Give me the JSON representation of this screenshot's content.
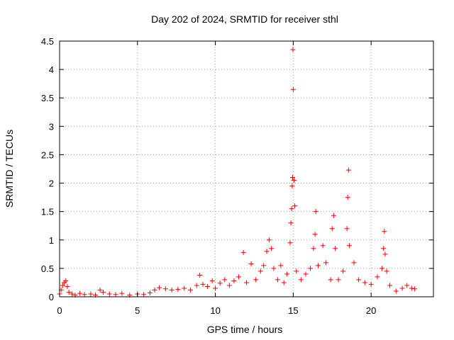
{
  "chart_data": {
    "type": "scatter",
    "title": "Day 202 of 2024, SRMTID for receiver sthl",
    "xlabel": "GPS time / hours",
    "ylabel": "SRMTID / TECUs",
    "xlim": [
      0,
      24
    ],
    "ylim": [
      0,
      4.5
    ],
    "xticks": [
      0,
      5,
      10,
      15,
      20
    ],
    "xtick_labels": [
      "0",
      "5",
      "10",
      "15",
      "20"
    ],
    "yticks": [
      0,
      0.5,
      1,
      1.5,
      2,
      2.5,
      3,
      3.5,
      4,
      4.5
    ],
    "ytick_labels": [
      "0",
      "0.5",
      "1",
      "1.5",
      "2",
      "2.5",
      "3",
      "3.5",
      "4",
      "4.5"
    ],
    "grid": true,
    "marker": "plus",
    "color": "#ff0000",
    "series": [
      {
        "name": "SRMTID",
        "points": [
          [
            0.0,
            0.05
          ],
          [
            0.1,
            0.12
          ],
          [
            0.2,
            0.2
          ],
          [
            0.3,
            0.25
          ],
          [
            0.4,
            0.28
          ],
          [
            0.5,
            0.18
          ],
          [
            0.6,
            0.08
          ],
          [
            0.8,
            0.05
          ],
          [
            1.0,
            0.03
          ],
          [
            1.3,
            0.06
          ],
          [
            1.6,
            0.04
          ],
          [
            2.0,
            0.05
          ],
          [
            2.3,
            0.03
          ],
          [
            2.6,
            0.12
          ],
          [
            2.8,
            0.08
          ],
          [
            3.2,
            0.05
          ],
          [
            3.6,
            0.04
          ],
          [
            4.0,
            0.06
          ],
          [
            4.5,
            0.03
          ],
          [
            5.0,
            0.05
          ],
          [
            5.4,
            0.04
          ],
          [
            5.8,
            0.07
          ],
          [
            6.1,
            0.12
          ],
          [
            6.4,
            0.16
          ],
          [
            6.8,
            0.14
          ],
          [
            7.2,
            0.12
          ],
          [
            7.6,
            0.13
          ],
          [
            8.0,
            0.15
          ],
          [
            8.4,
            0.12
          ],
          [
            8.8,
            0.2
          ],
          [
            9.0,
            0.38
          ],
          [
            9.2,
            0.22
          ],
          [
            9.5,
            0.18
          ],
          [
            9.8,
            0.28
          ],
          [
            10.0,
            0.15
          ],
          [
            10.3,
            0.24
          ],
          [
            10.6,
            0.3
          ],
          [
            10.9,
            0.2
          ],
          [
            11.2,
            0.28
          ],
          [
            11.5,
            0.35
          ],
          [
            11.8,
            0.78
          ],
          [
            12.0,
            0.25
          ],
          [
            12.3,
            0.58
          ],
          [
            12.6,
            0.3
          ],
          [
            12.9,
            0.45
          ],
          [
            13.1,
            0.55
          ],
          [
            13.3,
            0.8
          ],
          [
            13.45,
            1.0
          ],
          [
            13.6,
            0.85
          ],
          [
            13.75,
            0.5
          ],
          [
            14.0,
            0.3
          ],
          [
            14.2,
            0.55
          ],
          [
            14.4,
            0.25
          ],
          [
            14.6,
            0.4
          ],
          [
            14.8,
            0.95
          ],
          [
            14.85,
            1.3
          ],
          [
            14.9,
            1.55
          ],
          [
            14.93,
            1.95
          ],
          [
            14.96,
            2.1
          ],
          [
            14.98,
            4.35
          ],
          [
            15.0,
            3.65
          ],
          [
            15.05,
            2.05
          ],
          [
            15.1,
            1.6
          ],
          [
            15.2,
            0.45
          ],
          [
            15.5,
            0.3
          ],
          [
            15.8,
            0.4
          ],
          [
            16.1,
            0.5
          ],
          [
            16.3,
            0.85
          ],
          [
            16.4,
            1.1
          ],
          [
            16.45,
            1.5
          ],
          [
            16.6,
            0.55
          ],
          [
            16.9,
            0.9
          ],
          [
            17.1,
            0.6
          ],
          [
            17.4,
            0.3
          ],
          [
            17.5,
            1.2
          ],
          [
            17.6,
            1.43
          ],
          [
            17.7,
            0.85
          ],
          [
            17.9,
            0.3
          ],
          [
            18.2,
            0.45
          ],
          [
            18.45,
            1.2
          ],
          [
            18.5,
            1.75
          ],
          [
            18.55,
            2.23
          ],
          [
            18.6,
            0.9
          ],
          [
            18.9,
            0.6
          ],
          [
            19.2,
            0.3
          ],
          [
            19.6,
            0.25
          ],
          [
            20.0,
            0.22
          ],
          [
            20.4,
            0.35
          ],
          [
            20.7,
            0.5
          ],
          [
            20.8,
            0.85
          ],
          [
            20.85,
            1.15
          ],
          [
            20.9,
            0.75
          ],
          [
            21.0,
            0.45
          ],
          [
            21.2,
            0.2
          ],
          [
            21.6,
            0.1
          ],
          [
            22.0,
            0.15
          ],
          [
            22.3,
            0.2
          ],
          [
            22.6,
            0.15
          ],
          [
            22.8,
            0.14
          ]
        ]
      }
    ]
  }
}
